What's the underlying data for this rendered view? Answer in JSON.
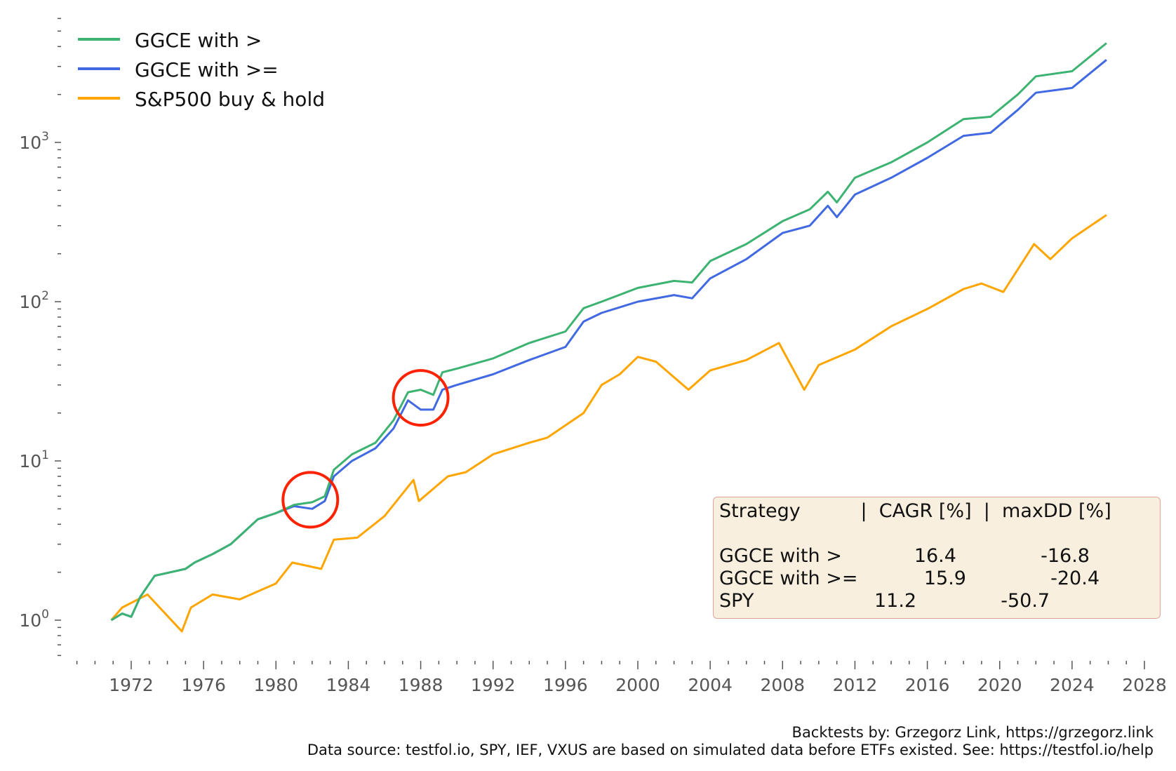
{
  "chart_data": {
    "type": "line",
    "title": "",
    "xlabel": "",
    "ylabel": "",
    "yscale": "log",
    "xlim": [
      1969,
      2028
    ],
    "ylim": [
      0.55,
      6000
    ],
    "x_ticks": [
      "1972",
      "1976",
      "1980",
      "1984",
      "1988",
      "1992",
      "1996",
      "2000",
      "2004",
      "2008",
      "2012",
      "2016",
      "2020",
      "2024",
      "2028"
    ],
    "y_ticks": [
      {
        "base": "10",
        "exp": "0",
        "value": 1
      },
      {
        "base": "10",
        "exp": "1",
        "value": 10
      },
      {
        "base": "10",
        "exp": "2",
        "value": 100
      },
      {
        "base": "10",
        "exp": "3",
        "value": 1000
      }
    ],
    "grid": false,
    "legend_position": "top-left",
    "series": [
      {
        "name": "GGCE with >",
        "color": "#3cb371",
        "x": [
          1970.9,
          1971.5,
          1972,
          1972.5,
          1973.3,
          1975,
          1975.5,
          1976.5,
          1977.5,
          1979,
          1980,
          1981,
          1982,
          1982.7,
          1983.2,
          1984.2,
          1985.5,
          1986.5,
          1987.3,
          1988,
          1988.7,
          1989.2,
          1990,
          1992,
          1994,
          1996,
          1997,
          1998,
          2000,
          2002,
          2003,
          2004,
          2006,
          2008,
          2009.5,
          2010.5,
          2011,
          2012,
          2014,
          2016,
          2018,
          2019.5,
          2021,
          2022,
          2024,
          2025.9
        ],
        "y": [
          1.0,
          1.1,
          1.05,
          1.4,
          1.9,
          2.1,
          2.3,
          2.6,
          3.0,
          4.3,
          4.7,
          5.3,
          5.5,
          6.0,
          8.8,
          11,
          13,
          18,
          27,
          28,
          26,
          36,
          38,
          44,
          55,
          65,
          91,
          100,
          122,
          135,
          132,
          180,
          230,
          320,
          380,
          490,
          420,
          600,
          750,
          1000,
          1400,
          1450,
          2000,
          2600,
          2800,
          4200
        ]
      },
      {
        "name": "GGCE with >=",
        "color": "#4169e1",
        "x": [
          1970.9,
          1971.5,
          1972,
          1972.5,
          1973.3,
          1975,
          1975.5,
          1976.5,
          1977.5,
          1979,
          1980,
          1981,
          1982,
          1982.7,
          1983.2,
          1984.2,
          1985.5,
          1986.5,
          1987.3,
          1988,
          1988.7,
          1989.2,
          1990,
          1992,
          1994,
          1996,
          1997,
          1998,
          2000,
          2002,
          2003,
          2004,
          2006,
          2008,
          2009.5,
          2010.5,
          2011,
          2012,
          2014,
          2016,
          2018,
          2019.5,
          2021,
          2022,
          2024,
          2025.9
        ],
        "y": [
          1.0,
          1.1,
          1.05,
          1.4,
          1.9,
          2.1,
          2.3,
          2.6,
          3.0,
          4.3,
          4.7,
          5.2,
          5.0,
          5.6,
          8.0,
          10,
          12,
          16,
          24,
          21,
          21,
          28,
          30,
          35,
          43,
          52,
          75,
          85,
          100,
          110,
          105,
          140,
          185,
          270,
          300,
          400,
          340,
          470,
          600,
          800,
          1100,
          1150,
          1600,
          2050,
          2200,
          3300
        ]
      },
      {
        "name": "S&P500 buy & hold",
        "color": "#ffa500",
        "x": [
          1970.9,
          1971.5,
          1972.9,
          1974.8,
          1975.3,
          1976.5,
          1978,
          1980,
          1980.9,
          1982.5,
          1983.2,
          1984.5,
          1986,
          1987.6,
          1987.9,
          1989.5,
          1990.5,
          1992,
          1994,
          1995,
          1997,
          1998,
          1999,
          2000,
          2001,
          2002.8,
          2004,
          2006,
          2007.8,
          2009.2,
          2010,
          2012,
          2014,
          2016,
          2018,
          2019,
          2020.2,
          2021.9,
          2022.8,
          2024,
          2025.9
        ],
        "y": [
          1.0,
          1.2,
          1.45,
          0.85,
          1.2,
          1.45,
          1.35,
          1.7,
          2.3,
          2.1,
          3.2,
          3.3,
          4.5,
          7.6,
          5.6,
          8,
          8.5,
          11,
          13,
          14,
          20,
          30,
          35,
          45,
          42,
          28,
          37,
          43,
          55,
          28,
          40,
          50,
          70,
          90,
          120,
          130,
          115,
          230,
          185,
          250,
          350
        ]
      }
    ],
    "annotations": [
      {
        "shape": "circle",
        "color": "#ff2200",
        "x": 1981.9,
        "y": 5.7
      },
      {
        "shape": "circle",
        "color": "#ff2200",
        "x": 1988.0,
        "y": 24.9
      }
    ],
    "stats_table": {
      "header": "Strategy          |  CAGR [%]  |  maxDD [%]",
      "rows": [
        "GGCE with >            16.4              -16.8",
        "GGCE with >=           15.9              -20.4",
        "SPY                    11.2              -50.7"
      ]
    },
    "footer": [
      "Backtests by: Grzegorz Link, https://grzegorz.link",
      "Data source: testfol.io, SPY, IEF, VXUS are based on simulated data before ETFs existed. See: https://testfol.io/help"
    ]
  }
}
